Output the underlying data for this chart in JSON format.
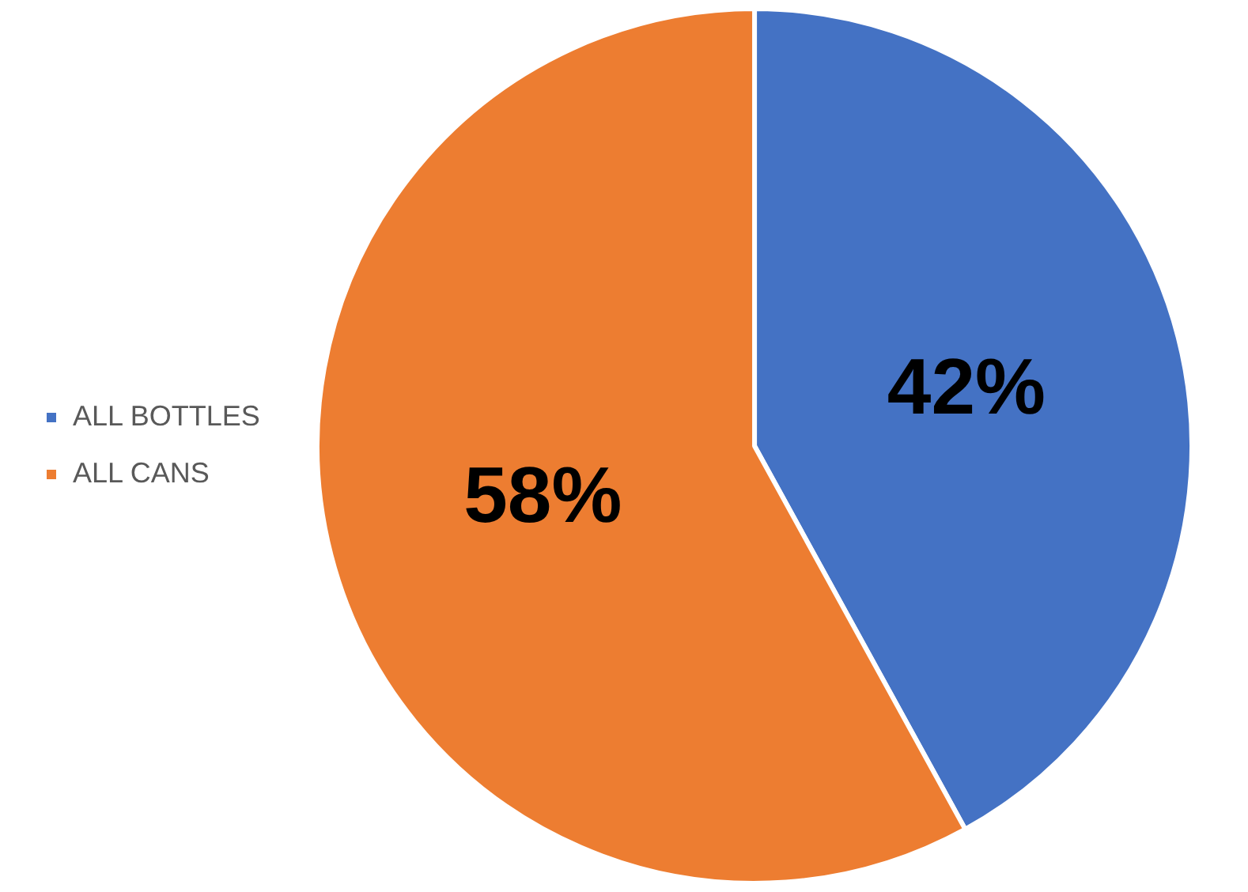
{
  "chart_data": {
    "type": "pie",
    "categories": [
      "ALL BOTTLES",
      "ALL CANS"
    ],
    "values": [
      42,
      58
    ],
    "colors": [
      "#4472c4",
      "#ed7d31"
    ],
    "value_labels": [
      "42%",
      "58%"
    ],
    "legend": "left"
  }
}
